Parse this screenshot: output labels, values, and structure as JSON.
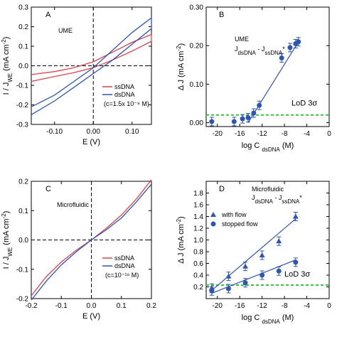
{
  "chart_data": [
    {
      "panel": "A",
      "type": "line",
      "annotation": "UME",
      "xlabel": "E (V)",
      "ylabel": "I / J_WE (mA cm⁻²)",
      "xlim": [
        -0.16,
        0.15
      ],
      "ylim": [
        -0.3,
        0.3
      ],
      "xticks": [
        -0.1,
        0.0,
        0.1
      ],
      "xtick_labels": [
        "-0.10",
        "0.00",
        "0.10"
      ],
      "yticks": [
        -0.3,
        -0.2,
        -0.1,
        0.0,
        0.1,
        0.2,
        0.3
      ],
      "ytick_labels": [
        "-0.3",
        "-0.2",
        "-0.1",
        "0.0",
        "0.1",
        "0.2",
        "0.3"
      ],
      "legend": [
        "ssDNA",
        "dsDNA",
        "(c=1.5x 10⁻⁸ M)"
      ],
      "series": [
        {
          "name": "ssDNA",
          "color": "#d9434f",
          "x": [
            -0.16,
            -0.1,
            -0.05,
            0.0,
            0.05,
            0.1,
            0.15,
            0.15,
            0.1,
            0.05,
            0.0,
            -0.05,
            -0.1,
            -0.16
          ],
          "y": [
            -0.08,
            -0.055,
            -0.035,
            -0.01,
            0.03,
            0.075,
            0.125,
            0.16,
            0.12,
            0.07,
            0.02,
            -0.01,
            -0.03,
            -0.045
          ]
        },
        {
          "name": "dsDNA",
          "color": "#2f55b0",
          "x": [
            -0.16,
            -0.1,
            -0.05,
            0.0,
            0.05,
            0.1,
            0.15,
            0.15,
            0.1,
            0.05,
            0.0,
            -0.05,
            -0.1,
            -0.16
          ],
          "y": [
            -0.25,
            -0.18,
            -0.11,
            -0.04,
            0.03,
            0.11,
            0.19,
            0.245,
            0.17,
            0.08,
            -0.01,
            -0.08,
            -0.15,
            -0.21
          ]
        }
      ]
    },
    {
      "panel": "B",
      "type": "scatter",
      "annotation": "UME",
      "formula": "J_dsDNA - J_ssDNA*",
      "xlabel": "log C_dsDNA (M)",
      "ylabel": "Δ J (mA cm⁻²)",
      "xlim": [
        -22,
        0
      ],
      "ylim": [
        -0.01,
        0.3
      ],
      "xticks": [
        -20,
        -16,
        -12,
        -8,
        -4,
        0
      ],
      "xtick_labels": [
        "-20",
        "-16",
        "-12",
        "-8",
        "-4",
        "0"
      ],
      "yticks": [
        0.0,
        0.1,
        0.2,
        0.3
      ],
      "ytick_labels": [
        "0.00",
        "0.10",
        "0.20",
        "0.30"
      ],
      "lod_label": "LoD 3σ",
      "lod_value": 0.02,
      "series": [
        {
          "name": "",
          "color": "#2f55b0",
          "x": [
            -21,
            -17,
            -15.5,
            -14.5,
            -13.5,
            -12.5,
            -8.5,
            -7,
            -6,
            -5.5
          ],
          "y": [
            0.003,
            0.003,
            0.01,
            0.013,
            0.025,
            0.045,
            0.168,
            0.195,
            0.205,
            0.21
          ]
        }
      ],
      "fit": {
        "x": [
          -14.5,
          -5.5
        ],
        "y": [
          0.0,
          0.21
        ]
      }
    },
    {
      "panel": "C",
      "type": "line",
      "annotation": "Microfluidic",
      "xlabel": "E (V)",
      "ylabel": "I / J_WE (mA cm⁻²)",
      "xlim": [
        -0.2,
        0.2
      ],
      "ylim": [
        -0.2,
        0.2
      ],
      "xticks": [
        -0.2,
        -0.1,
        0.0,
        0.1,
        0.2
      ],
      "xtick_labels": [
        "-0.2",
        "-0.1",
        "0.0",
        "0.1",
        "0.2"
      ],
      "yticks": [
        -0.2,
        -0.1,
        0.0,
        0.1,
        0.2
      ],
      "ytick_labels": [
        "-0.2",
        "-0.1",
        "0.0",
        "0.1",
        "0.2"
      ],
      "legend": [
        "ssDNA",
        "dsDNA",
        "(c=10⁻¹⁸ M)"
      ],
      "series": [
        {
          "name": "ssDNA",
          "color": "#d9434f",
          "x": [
            -0.2,
            -0.15,
            -0.1,
            -0.05,
            0.0,
            0.05,
            0.1,
            0.15,
            0.2
          ],
          "y": [
            -0.19,
            -0.125,
            -0.075,
            -0.035,
            0.0,
            0.04,
            0.085,
            0.14,
            0.205
          ]
        },
        {
          "name": "dsDNA",
          "color": "#2f55b0",
          "x": [
            -0.2,
            -0.15,
            -0.1,
            -0.05,
            0.0,
            0.05,
            0.1,
            0.15,
            0.2
          ],
          "y": [
            -0.205,
            -0.14,
            -0.085,
            -0.04,
            0.0,
            0.035,
            0.075,
            0.13,
            0.19
          ]
        }
      ]
    },
    {
      "panel": "D",
      "type": "scatter",
      "annotation": "Microfluidic",
      "formula": "J_dsDNA - J_ssDNA*",
      "xlabel": "log C_dsDNA (M)",
      "ylabel": "Δ J (mA cm⁻²)",
      "xlim": [
        -22,
        0
      ],
      "ylim": [
        0.0,
        2.0
      ],
      "xticks": [
        -20,
        -16,
        -12,
        -8,
        -4,
        0
      ],
      "xtick_labels": [
        "-20",
        "-16",
        "-12",
        "-8",
        "-4",
        "0"
      ],
      "yticks": [
        0.2,
        0.4,
        0.6,
        0.8,
        1.0,
        1.2,
        1.4,
        1.6,
        1.8
      ],
      "ytick_labels": [
        "0.2",
        "0.4",
        "0.6",
        "0.8",
        "1.0",
        "1.2",
        "1.4",
        "1.6",
        "1.8"
      ],
      "lod_label": "LoD 3σ",
      "lod_value": 0.23,
      "series": [
        {
          "name": "with flow",
          "marker": "triangle",
          "color": "#2f55b0",
          "x": [
            -21,
            -18,
            -15,
            -12,
            -9,
            -6
          ],
          "y": [
            0.18,
            0.38,
            0.55,
            0.74,
            0.98,
            1.4
          ]
        },
        {
          "name": "stopped flow",
          "marker": "circle",
          "color": "#2f55b0",
          "x": [
            -21,
            -18,
            -15,
            -12,
            -9,
            -6
          ],
          "y": [
            0.13,
            0.17,
            0.27,
            0.4,
            0.47,
            0.62
          ]
        }
      ],
      "fits": [
        {
          "x": [
            -21,
            -6
          ],
          "y": [
            0.14,
            1.36
          ]
        },
        {
          "x": [
            -21,
            -6
          ],
          "y": [
            0.09,
            0.66
          ]
        }
      ]
    }
  ]
}
